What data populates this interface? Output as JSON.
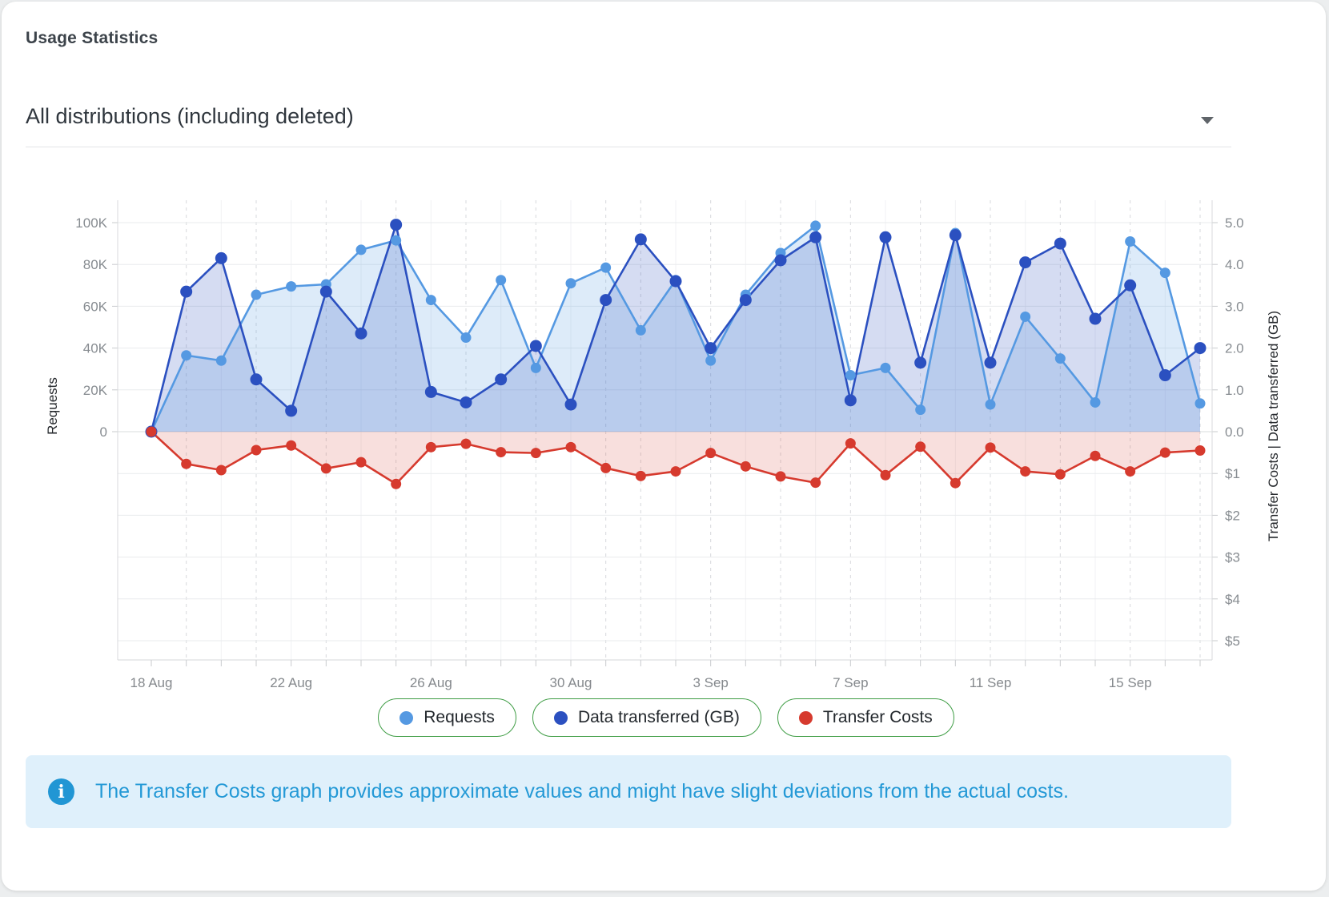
{
  "header": {
    "title": "Usage Statistics"
  },
  "filter": {
    "selected": "All distributions (including deleted)"
  },
  "chart_data": {
    "type": "line",
    "x": [
      "18 Aug",
      "19 Aug",
      "20 Aug",
      "21 Aug",
      "22 Aug",
      "23 Aug",
      "24 Aug",
      "25 Aug",
      "26 Aug",
      "27 Aug",
      "28 Aug",
      "29 Aug",
      "30 Aug",
      "31 Aug",
      "1 Sep",
      "2 Sep",
      "3 Sep",
      "4 Sep",
      "5 Sep",
      "6 Sep",
      "7 Sep",
      "8 Sep",
      "9 Sep",
      "10 Sep",
      "11 Sep",
      "12 Sep",
      "13 Sep",
      "14 Sep",
      "15 Sep",
      "16 Sep",
      "17 Sep"
    ],
    "x_tick_labels": [
      "18 Aug",
      "22 Aug",
      "26 Aug",
      "30 Aug",
      "3 Sep",
      "7 Sep",
      "11 Sep",
      "15 Sep"
    ],
    "x_tick_indices": [
      0,
      4,
      8,
      12,
      16,
      20,
      24,
      28
    ],
    "left_axis": {
      "title": "Requests",
      "ticks": [
        "100K",
        "80K",
        "60K",
        "40K",
        "20K",
        "0"
      ],
      "max": 100000
    },
    "right_axis": {
      "title": "Transfer Costs | Data transferred (GB)",
      "gb_ticks": [
        "5.0",
        "4.0",
        "3.0",
        "2.0",
        "1.0",
        "0.0"
      ],
      "cost_ticks": [
        "$1",
        "$2",
        "$3",
        "$4",
        "$5"
      ],
      "gb_max": 5,
      "cost_max": 5
    },
    "grid": {
      "horizontal": true,
      "vertical_dashed_on_odd_dates": true
    },
    "legend_position": "bottom",
    "series": [
      {
        "name": "Requests",
        "axis": "left",
        "color": "#5599e2",
        "fill": "rgba(85,153,226,0.20)",
        "values": [
          0,
          36500,
          34000,
          65500,
          69500,
          70500,
          87000,
          91500,
          63000,
          45000,
          72500,
          30500,
          71000,
          78500,
          48500,
          72500,
          34000,
          65500,
          85500,
          98500,
          27000,
          30500,
          10500,
          95000,
          13000,
          55000,
          35000,
          14000,
          91000,
          76000,
          13500
        ]
      },
      {
        "name": "Data transferred (GB)",
        "axis": "right_gb",
        "color": "#2b50c0",
        "fill": "rgba(43,80,192,0.20)",
        "values": [
          0,
          3.35,
          4.15,
          1.25,
          0.5,
          3.35,
          2.35,
          4.95,
          0.95,
          0.7,
          1.25,
          2.05,
          0.65,
          3.15,
          4.6,
          3.6,
          2.0,
          3.15,
          4.1,
          4.65,
          0.75,
          4.65,
          1.65,
          4.7,
          1.65,
          4.05,
          4.5,
          2.7,
          3.5,
          1.35,
          2.0
        ]
      },
      {
        "name": "Transfer Costs",
        "axis": "right_cost",
        "color": "#d63a2e",
        "fill": "rgba(214,58,46,0.16)",
        "values": [
          0,
          0.77,
          0.92,
          0.44,
          0.33,
          0.88,
          0.73,
          1.25,
          0.37,
          0.29,
          0.49,
          0.51,
          0.37,
          0.87,
          1.06,
          0.95,
          0.51,
          0.83,
          1.07,
          1.22,
          0.28,
          1.04,
          0.36,
          1.23,
          0.38,
          0.95,
          1.02,
          0.58,
          0.95,
          0.5,
          0.45
        ]
      }
    ]
  },
  "legend": [
    {
      "label": "Requests",
      "color": "#5599e2"
    },
    {
      "label": "Data transferred (GB)",
      "color": "#2b50c0"
    },
    {
      "label": "Transfer Costs",
      "color": "#d63a2e"
    }
  ],
  "banner": {
    "text": "The Transfer Costs graph provides approximate values and might have slight deviations from the actual costs."
  }
}
